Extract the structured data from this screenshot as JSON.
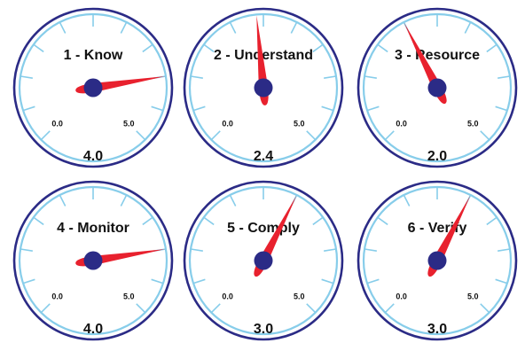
{
  "chart_data": {
    "type": "gauge",
    "scale_min": 0.0,
    "scale_max": 5.0,
    "colors": {
      "outer_ring": "#2b2b86",
      "inner_ring": "#87cdea",
      "needle": "#e8212e",
      "hub": "#2b2b86",
      "text": "#111111"
    },
    "gauges": [
      {
        "title": "1 - Know",
        "value": 4.0,
        "value_label": "4.0",
        "min_label": "0.0",
        "max_label": "5.0"
      },
      {
        "title": "2 - Understand",
        "value": 2.4,
        "value_label": "2.4",
        "min_label": "0.0",
        "max_label": "5.0"
      },
      {
        "title": "3 - Resource",
        "value": 2.0,
        "value_label": "2.0",
        "min_label": "0.0",
        "max_label": "5.0"
      },
      {
        "title": "4 - Monitor",
        "value": 4.0,
        "value_label": "4.0",
        "min_label": "0.0",
        "max_label": "5.0"
      },
      {
        "title": "5 - Comply",
        "value": 3.0,
        "value_label": "3.0",
        "min_label": "0.0",
        "max_label": "5.0"
      },
      {
        "title": "6 - Verify",
        "value": 3.0,
        "value_label": "3.0",
        "min_label": "0.0",
        "max_label": "5.0"
      }
    ]
  }
}
